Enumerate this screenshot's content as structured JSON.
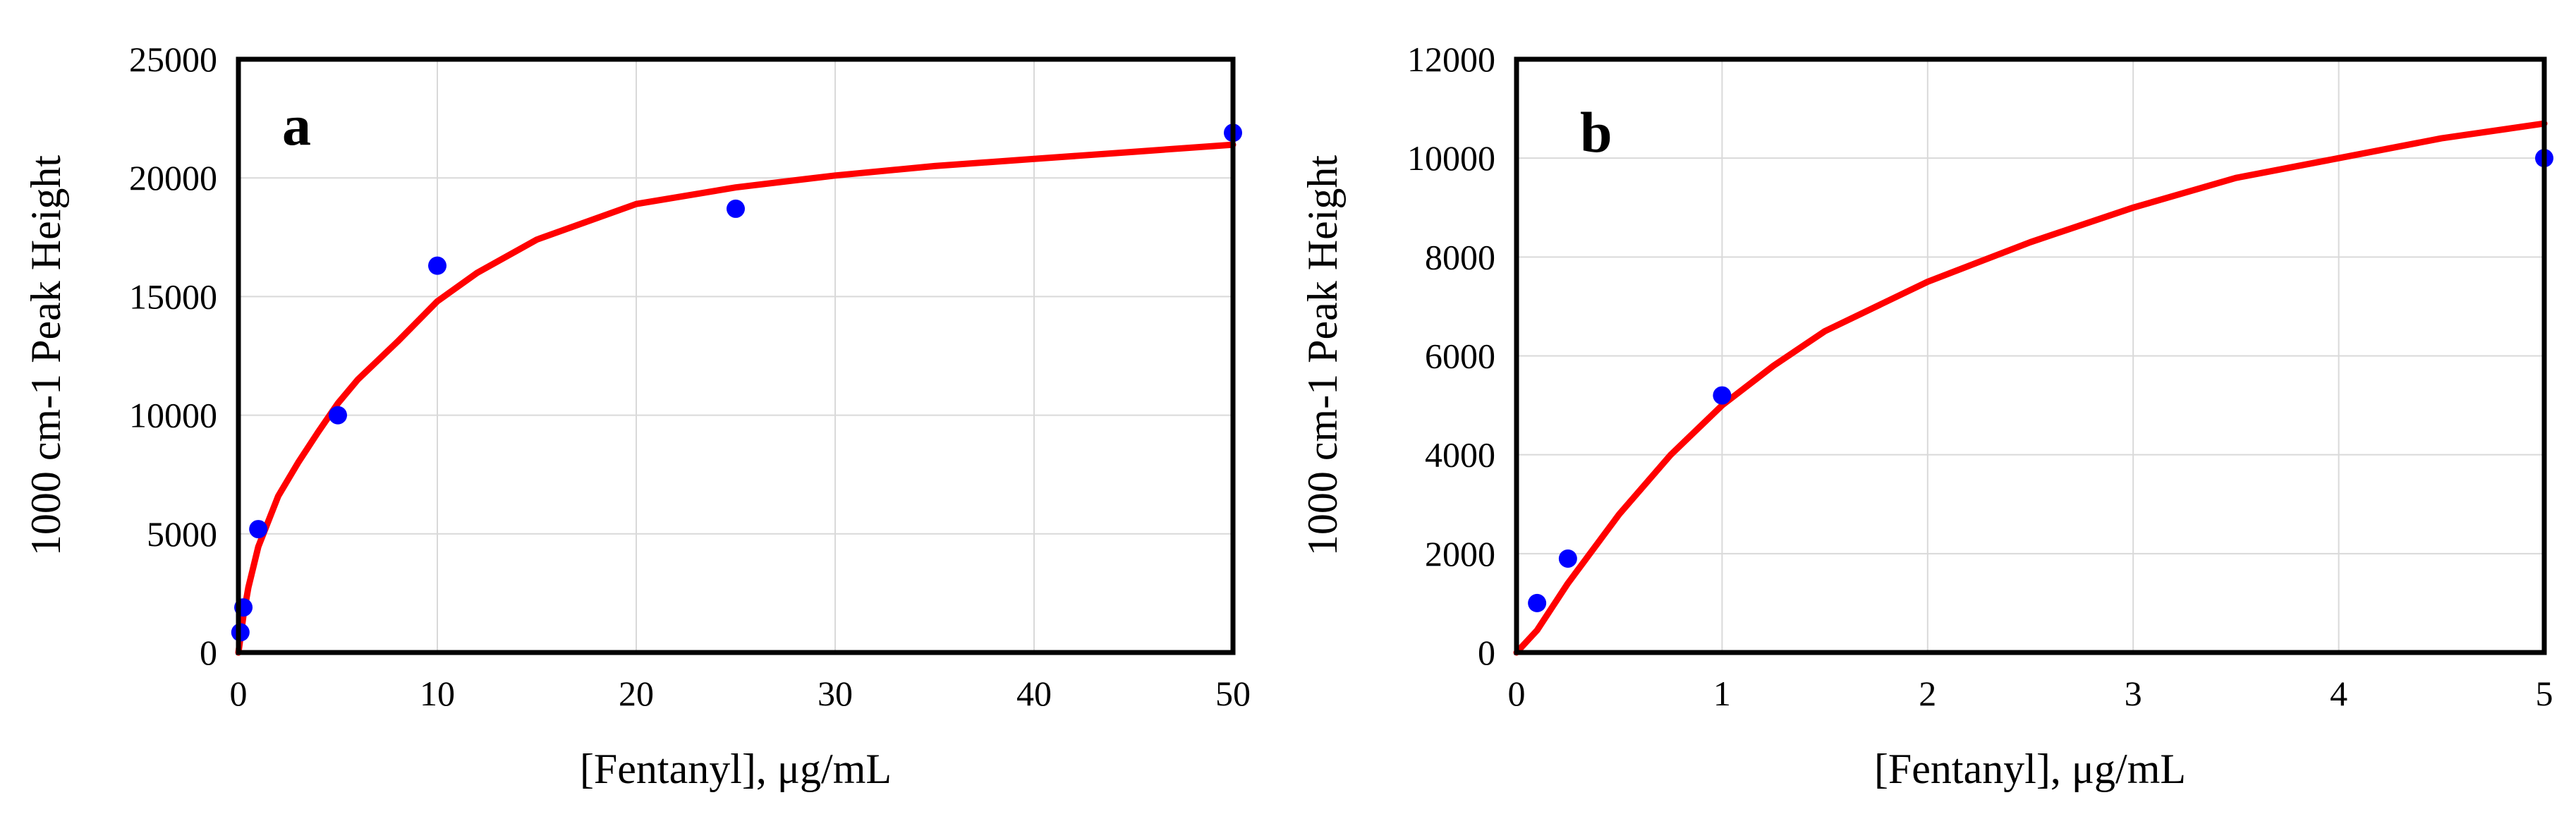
{
  "chart_data": [
    {
      "type": "scatter",
      "panel_label": "a",
      "title": "",
      "xlabel": "[Fentanyl],  μg/mL",
      "ylabel": "1000 cm-1 Peak Height",
      "xlim": [
        0,
        50
      ],
      "ylim": [
        0,
        25000
      ],
      "x_ticks": [
        0,
        10,
        20,
        30,
        40,
        50
      ],
      "y_ticks": [
        0,
        5000,
        10000,
        15000,
        20000,
        25000
      ],
      "grid": true,
      "series": [
        {
          "kind": "points",
          "color": "#0000ff",
          "x": [
            0.1,
            0.25,
            1,
            5,
            10,
            25,
            50
          ],
          "y": [
            850,
            1900,
            5200,
            10000,
            16300,
            18700,
            21900
          ]
        },
        {
          "kind": "line",
          "color": "#ff0000",
          "x": [
            0,
            0.25,
            0.5,
            1,
            2,
            3,
            4,
            5,
            6,
            8,
            10,
            12,
            15,
            20,
            25,
            30,
            35,
            40,
            45,
            50
          ],
          "y": [
            0,
            1550,
            2740,
            4460,
            6590,
            8000,
            9280,
            10500,
            11500,
            13100,
            14800,
            16000,
            17400,
            18900,
            19600,
            20100,
            20500,
            20800,
            21100,
            21400
          ]
        }
      ]
    },
    {
      "type": "scatter",
      "panel_label": "b",
      "title": "",
      "xlabel": "[Fentanyl],  μg/mL",
      "ylabel": "1000 cm-1 Peak Height",
      "xlim": [
        0,
        5
      ],
      "ylim": [
        0,
        12000
      ],
      "x_ticks": [
        0,
        1,
        2,
        3,
        4,
        5
      ],
      "y_ticks": [
        0,
        2000,
        4000,
        6000,
        8000,
        10000,
        12000
      ],
      "grid": true,
      "series": [
        {
          "kind": "points",
          "color": "#0000ff",
          "x": [
            0.1,
            0.25,
            1,
            5
          ],
          "y": [
            1000,
            1900,
            5200,
            10000
          ]
        },
        {
          "kind": "line",
          "color": "#ff0000",
          "x": [
            0,
            0.1,
            0.25,
            0.5,
            0.75,
            1,
            1.25,
            1.5,
            2,
            2.5,
            3,
            3.5,
            4,
            4.5,
            5
          ],
          "y": [
            0,
            450,
            1400,
            2800,
            4000,
            5000,
            5800,
            6500,
            7500,
            8300,
            9000,
            9600,
            10000,
            10400,
            10700
          ]
        }
      ]
    }
  ]
}
